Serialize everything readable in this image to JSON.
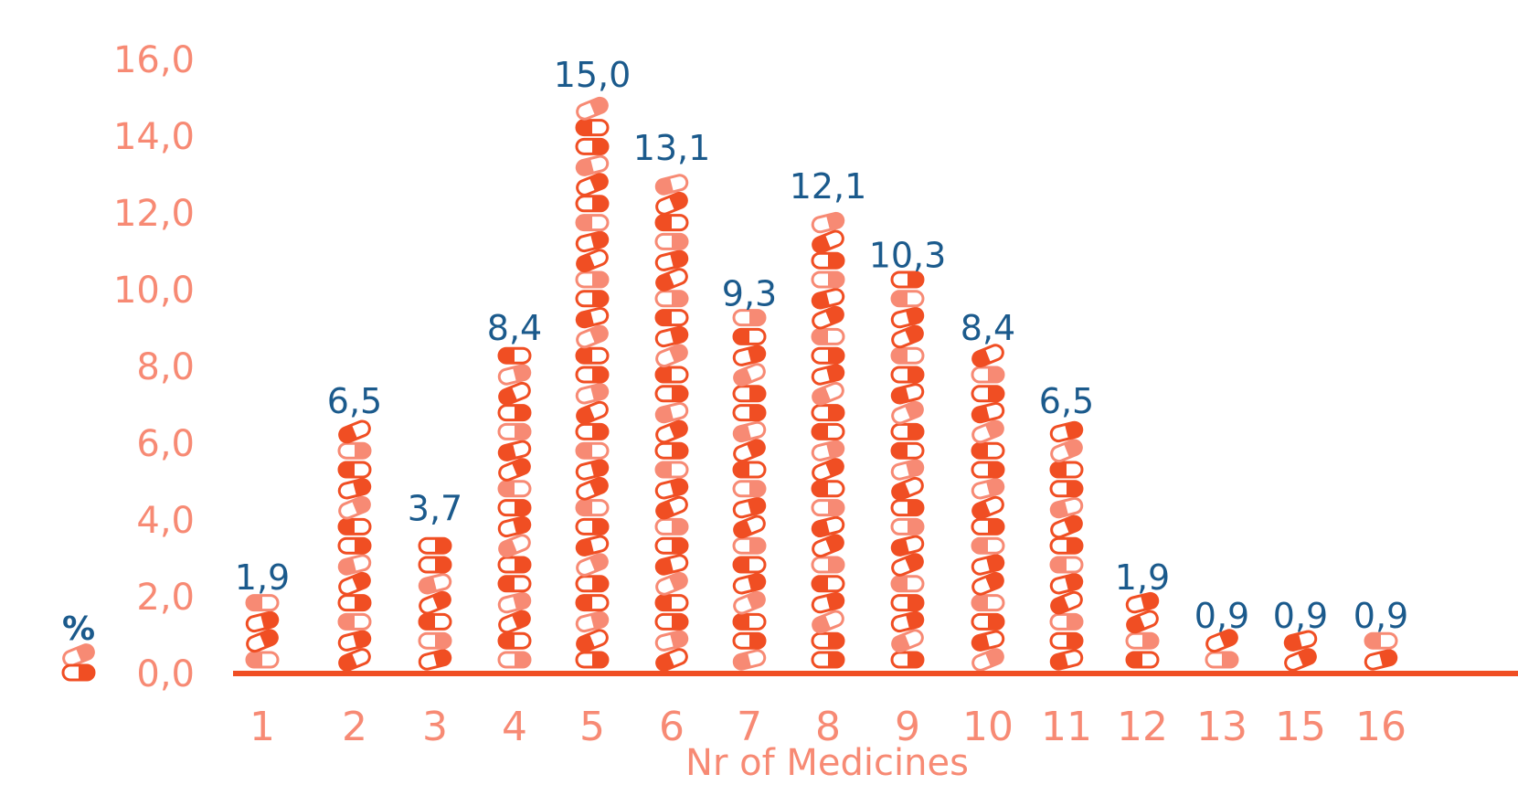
{
  "chart_data": {
    "type": "bar",
    "categories": [
      "1",
      "2",
      "3",
      "4",
      "5",
      "6",
      "7",
      "8",
      "9",
      "10",
      "11",
      "12",
      "13",
      "15",
      "16"
    ],
    "values": [
      1.9,
      6.5,
      3.7,
      8.4,
      15.0,
      13.1,
      9.3,
      12.1,
      10.3,
      8.4,
      6.5,
      1.9,
      0.9,
      0.9,
      0.9
    ],
    "value_labels": [
      "1,9",
      "6,5",
      "3,7",
      "8,4",
      "15,0",
      "13,1",
      "9,3",
      "12,1",
      "10,3",
      "8,4",
      "6,5",
      "1,9",
      "0,9",
      "0,9",
      "0,9"
    ],
    "yticks": [
      "0,0",
      "2,0",
      "4,0",
      "6,0",
      "8,0",
      "10,0",
      "12,0",
      "14,0",
      "16,0"
    ],
    "ytick_values": [
      0,
      2,
      4,
      6,
      8,
      10,
      12,
      14,
      16
    ],
    "ylim": [
      0,
      16
    ],
    "ylabel": "%",
    "xlabel": "Nr of Medicines",
    "title": "",
    "grid": false,
    "bar_style": "stacked pill icons",
    "colors": {
      "axis": "#f04e23",
      "pill_dark": "#f04e23",
      "pill_light": "#f78a74",
      "tick_text": "#f78a74",
      "value_text": "#1b5a8c"
    }
  }
}
